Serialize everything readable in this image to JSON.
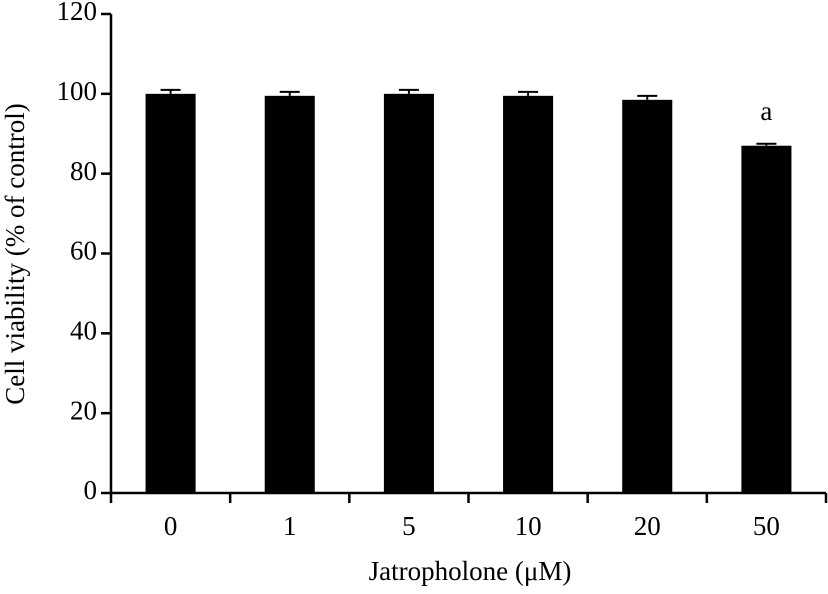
{
  "chart_data": {
    "type": "bar",
    "x_label": "Jatropholone (μM)",
    "y_label": "Cell viability (% of control)",
    "categories": [
      "0",
      "1",
      "5",
      "10",
      "20",
      "50"
    ],
    "values": [
      100,
      99.5,
      100,
      99.5,
      98.5,
      87
    ],
    "errors": [
      1,
      1,
      1,
      1,
      1,
      0.5
    ],
    "color": "#000000",
    "ylim": [
      0,
      120
    ],
    "yticks": [
      0,
      20,
      40,
      60,
      80,
      100,
      120
    ],
    "grid": false,
    "annotations": [
      {
        "text": "a",
        "x": "50"
      }
    ]
  }
}
